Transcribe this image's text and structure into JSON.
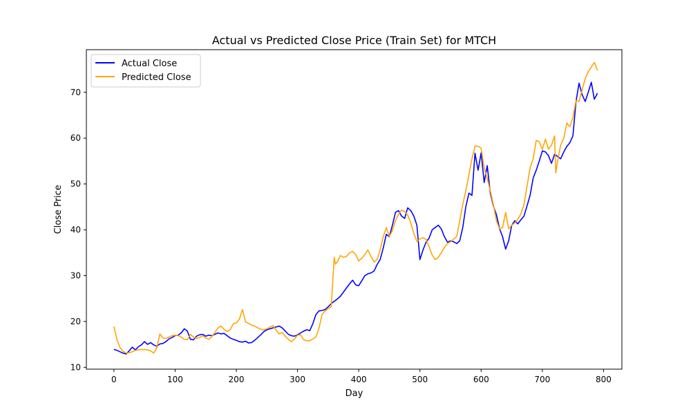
{
  "chart_data": {
    "type": "line",
    "title": "Actual vs Predicted Close Price (Train Set) for MTCH",
    "xlabel": "Day",
    "ylabel": "Close Price",
    "xlim": [
      -45,
      830
    ],
    "ylim": [
      9.6,
      79.3
    ],
    "xticks": [
      0,
      100,
      200,
      300,
      400,
      500,
      600,
      700,
      800
    ],
    "yticks": [
      10,
      20,
      30,
      40,
      50,
      60,
      70
    ],
    "grid": false,
    "legend_position": "upper left",
    "series": [
      {
        "name": "Actual Close",
        "color": "#0000ff",
        "points": [
          [
            0,
            13.9
          ],
          [
            5,
            13.7
          ],
          [
            10,
            13.4
          ],
          [
            15,
            13.1
          ],
          [
            20,
            12.9
          ],
          [
            25,
            13.6
          ],
          [
            30,
            14.4
          ],
          [
            35,
            13.8
          ],
          [
            40,
            14.5
          ],
          [
            45,
            14.9
          ],
          [
            50,
            15.6
          ],
          [
            55,
            15.0
          ],
          [
            60,
            15.4
          ],
          [
            65,
            14.9
          ],
          [
            70,
            14.6
          ],
          [
            75,
            15.1
          ],
          [
            80,
            15.2
          ],
          [
            85,
            15.6
          ],
          [
            90,
            16.2
          ],
          [
            95,
            16.5
          ],
          [
            100,
            16.9
          ],
          [
            105,
            17.0
          ],
          [
            110,
            17.5
          ],
          [
            115,
            18.4
          ],
          [
            120,
            17.9
          ],
          [
            125,
            16.1
          ],
          [
            130,
            16.0
          ],
          [
            135,
            16.8
          ],
          [
            140,
            17.1
          ],
          [
            145,
            17.2
          ],
          [
            150,
            16.8
          ],
          [
            155,
            17.0
          ],
          [
            160,
            16.9
          ],
          [
            165,
            17.2
          ],
          [
            170,
            17.5
          ],
          [
            175,
            17.3
          ],
          [
            180,
            17.4
          ],
          [
            185,
            16.9
          ],
          [
            190,
            16.4
          ],
          [
            195,
            16.1
          ],
          [
            200,
            15.9
          ],
          [
            205,
            15.6
          ],
          [
            210,
            15.5
          ],
          [
            215,
            15.7
          ],
          [
            220,
            15.3
          ],
          [
            225,
            15.4
          ],
          [
            230,
            15.9
          ],
          [
            235,
            16.5
          ],
          [
            240,
            17.1
          ],
          [
            245,
            17.8
          ],
          [
            250,
            18.2
          ],
          [
            255,
            18.4
          ],
          [
            260,
            18.6
          ],
          [
            265,
            18.8
          ],
          [
            270,
            19.0
          ],
          [
            275,
            18.6
          ],
          [
            280,
            17.9
          ],
          [
            285,
            17.2
          ],
          [
            290,
            16.9
          ],
          [
            295,
            16.8
          ],
          [
            300,
            17.1
          ],
          [
            305,
            17.5
          ],
          [
            310,
            17.9
          ],
          [
            315,
            18.2
          ],
          [
            320,
            18.0
          ],
          [
            325,
            19.5
          ],
          [
            330,
            21.5
          ],
          [
            335,
            22.3
          ],
          [
            340,
            22.4
          ],
          [
            345,
            22.6
          ],
          [
            350,
            23.2
          ],
          [
            355,
            23.9
          ],
          [
            360,
            24.4
          ],
          [
            365,
            24.9
          ],
          [
            370,
            25.5
          ],
          [
            375,
            26.4
          ],
          [
            380,
            27.3
          ],
          [
            385,
            28.2
          ],
          [
            390,
            29.0
          ],
          [
            395,
            28.0
          ],
          [
            400,
            27.8
          ],
          [
            405,
            28.9
          ],
          [
            410,
            30.0
          ],
          [
            415,
            30.4
          ],
          [
            420,
            30.6
          ],
          [
            425,
            31.0
          ],
          [
            430,
            32.4
          ],
          [
            435,
            33.5
          ],
          [
            440,
            36.0
          ],
          [
            445,
            39.0
          ],
          [
            450,
            38.5
          ],
          [
            455,
            41.0
          ],
          [
            460,
            43.8
          ],
          [
            465,
            44.2
          ],
          [
            470,
            43.0
          ],
          [
            475,
            42.5
          ],
          [
            480,
            44.8
          ],
          [
            485,
            44.2
          ],
          [
            490,
            43.0
          ],
          [
            495,
            41.0
          ],
          [
            500,
            33.5
          ],
          [
            505,
            35.6
          ],
          [
            510,
            37.3
          ],
          [
            515,
            38.2
          ],
          [
            520,
            40.0
          ],
          [
            525,
            40.5
          ],
          [
            530,
            41.0
          ],
          [
            535,
            40.2
          ],
          [
            540,
            38.5
          ],
          [
            545,
            37.3
          ],
          [
            550,
            37.6
          ],
          [
            555,
            37.4
          ],
          [
            560,
            37.0
          ],
          [
            565,
            37.6
          ],
          [
            570,
            40.5
          ],
          [
            575,
            45.0
          ],
          [
            580,
            48.0
          ],
          [
            585,
            47.5
          ],
          [
            590,
            56.7
          ],
          [
            595,
            53.0
          ],
          [
            600,
            56.8
          ],
          [
            605,
            50.3
          ],
          [
            610,
            54.0
          ],
          [
            615,
            48.0
          ],
          [
            620,
            45.2
          ],
          [
            625,
            43.3
          ],
          [
            630,
            40.3
          ],
          [
            635,
            38.5
          ],
          [
            640,
            35.8
          ],
          [
            645,
            37.6
          ],
          [
            650,
            41.0
          ],
          [
            655,
            42.0
          ],
          [
            660,
            41.3
          ],
          [
            665,
            42.2
          ],
          [
            670,
            43.0
          ],
          [
            675,
            45.2
          ],
          [
            680,
            47.5
          ],
          [
            685,
            51.3
          ],
          [
            690,
            53.0
          ],
          [
            695,
            55.0
          ],
          [
            700,
            57.2
          ],
          [
            705,
            57.0
          ],
          [
            710,
            56.2
          ],
          [
            715,
            54.5
          ],
          [
            720,
            56.5
          ],
          [
            725,
            56.0
          ],
          [
            730,
            55.5
          ],
          [
            735,
            57.0
          ],
          [
            740,
            58.2
          ],
          [
            745,
            59.0
          ],
          [
            750,
            60.5
          ],
          [
            755,
            68.0
          ],
          [
            760,
            72.0
          ],
          [
            765,
            69.5
          ],
          [
            770,
            68.0
          ],
          [
            775,
            70.0
          ],
          [
            780,
            72.2
          ],
          [
            785,
            68.5
          ],
          [
            790,
            69.8
          ]
        ]
      },
      {
        "name": "Predicted Close",
        "color": "#ffa500",
        "points": [
          [
            0,
            18.9
          ],
          [
            5,
            16.0
          ],
          [
            10,
            14.3
          ],
          [
            15,
            13.5
          ],
          [
            20,
            13.1
          ],
          [
            25,
            13.2
          ],
          [
            30,
            13.4
          ],
          [
            35,
            13.7
          ],
          [
            40,
            13.8
          ],
          [
            45,
            13.9
          ],
          [
            50,
            13.9
          ],
          [
            55,
            13.8
          ],
          [
            60,
            13.6
          ],
          [
            65,
            13.1
          ],
          [
            70,
            14.2
          ],
          [
            75,
            17.3
          ],
          [
            80,
            16.4
          ],
          [
            85,
            16.3
          ],
          [
            90,
            16.6
          ],
          [
            95,
            16.9
          ],
          [
            100,
            17.0
          ],
          [
            105,
            16.9
          ],
          [
            110,
            16.6
          ],
          [
            115,
            16.1
          ],
          [
            120,
            16.0
          ],
          [
            125,
            17.2
          ],
          [
            130,
            16.6
          ],
          [
            135,
            16.3
          ],
          [
            140,
            16.5
          ],
          [
            145,
            16.9
          ],
          [
            150,
            16.4
          ],
          [
            155,
            16.1
          ],
          [
            160,
            16.7
          ],
          [
            165,
            17.6
          ],
          [
            170,
            18.6
          ],
          [
            175,
            19.0
          ],
          [
            180,
            18.3
          ],
          [
            185,
            17.8
          ],
          [
            190,
            18.2
          ],
          [
            195,
            19.5
          ],
          [
            200,
            19.7
          ],
          [
            205,
            20.5
          ],
          [
            210,
            22.6
          ],
          [
            215,
            19.9
          ],
          [
            220,
            19.6
          ],
          [
            225,
            19.2
          ],
          [
            230,
            19.0
          ],
          [
            235,
            18.6
          ],
          [
            240,
            18.3
          ],
          [
            245,
            18.2
          ],
          [
            250,
            18.4
          ],
          [
            255,
            18.8
          ],
          [
            260,
            19.1
          ],
          [
            265,
            18.1
          ],
          [
            270,
            17.3
          ],
          [
            275,
            17.6
          ],
          [
            280,
            16.8
          ],
          [
            285,
            16.1
          ],
          [
            290,
            15.6
          ],
          [
            295,
            16.2
          ],
          [
            300,
            17.0
          ],
          [
            305,
            17.1
          ],
          [
            310,
            16.0
          ],
          [
            315,
            15.8
          ],
          [
            320,
            15.8
          ],
          [
            325,
            16.2
          ],
          [
            330,
            16.6
          ],
          [
            335,
            18.5
          ],
          [
            340,
            21.5
          ],
          [
            345,
            22.3
          ],
          [
            350,
            22.8
          ],
          [
            355,
            23.2
          ],
          [
            360,
            34.0
          ],
          [
            362,
            32.5
          ],
          [
            365,
            33.0
          ],
          [
            370,
            34.4
          ],
          [
            375,
            34.0
          ],
          [
            380,
            34.2
          ],
          [
            385,
            35.0
          ],
          [
            390,
            35.3
          ],
          [
            395,
            34.6
          ],
          [
            400,
            33.2
          ],
          [
            405,
            33.8
          ],
          [
            410,
            34.6
          ],
          [
            415,
            35.6
          ],
          [
            420,
            34.2
          ],
          [
            425,
            33.0
          ],
          [
            430,
            33.5
          ],
          [
            435,
            35.6
          ],
          [
            440,
            38.5
          ],
          [
            445,
            40.5
          ],
          [
            450,
            38.6
          ],
          [
            455,
            39.8
          ],
          [
            460,
            42.0
          ],
          [
            465,
            43.4
          ],
          [
            470,
            44.3
          ],
          [
            475,
            44.0
          ],
          [
            480,
            43.2
          ],
          [
            485,
            41.5
          ],
          [
            490,
            39.2
          ],
          [
            495,
            37.5
          ],
          [
            500,
            38.0
          ],
          [
            505,
            38.3
          ],
          [
            510,
            37.9
          ],
          [
            515,
            36.3
          ],
          [
            520,
            34.5
          ],
          [
            525,
            33.5
          ],
          [
            530,
            34.0
          ],
          [
            535,
            35.0
          ],
          [
            540,
            36.2
          ],
          [
            545,
            37.0
          ],
          [
            550,
            37.4
          ],
          [
            555,
            38.0
          ],
          [
            560,
            38.5
          ],
          [
            565,
            42.0
          ],
          [
            570,
            45.5
          ],
          [
            575,
            48.5
          ],
          [
            580,
            52.0
          ],
          [
            585,
            55.5
          ],
          [
            590,
            58.3
          ],
          [
            595,
            58.2
          ],
          [
            600,
            57.8
          ],
          [
            605,
            53.5
          ],
          [
            610,
            51.2
          ],
          [
            615,
            48.5
          ],
          [
            620,
            45.5
          ],
          [
            625,
            42.0
          ],
          [
            630,
            40.2
          ],
          [
            635,
            40.5
          ],
          [
            640,
            43.8
          ],
          [
            645,
            40.2
          ],
          [
            650,
            41.0
          ],
          [
            655,
            41.5
          ],
          [
            660,
            42.3
          ],
          [
            665,
            43.5
          ],
          [
            670,
            45.5
          ],
          [
            675,
            49.5
          ],
          [
            680,
            53.5
          ],
          [
            685,
            55.5
          ],
          [
            690,
            59.5
          ],
          [
            695,
            59.2
          ],
          [
            700,
            57.5
          ],
          [
            705,
            59.8
          ],
          [
            710,
            57.6
          ],
          [
            715,
            58.5
          ],
          [
            720,
            60.5
          ],
          [
            722,
            52.4
          ],
          [
            725,
            55.0
          ],
          [
            730,
            58.5
          ],
          [
            735,
            60.0
          ],
          [
            740,
            63.3
          ],
          [
            745,
            62.5
          ],
          [
            750,
            64.5
          ],
          [
            755,
            68.2
          ],
          [
            760,
            68.0
          ],
          [
            765,
            70.5
          ],
          [
            770,
            73.0
          ],
          [
            775,
            74.5
          ],
          [
            780,
            75.5
          ],
          [
            785,
            76.5
          ],
          [
            790,
            74.8
          ]
        ]
      }
    ]
  }
}
